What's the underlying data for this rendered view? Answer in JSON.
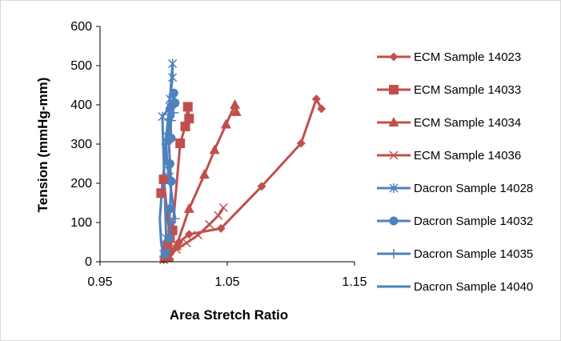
{
  "chart_data": {
    "type": "scatter",
    "title": "",
    "xlabel": "Area Stretch Ratio",
    "ylabel": "Tension (mmHg-mm)",
    "xlim": [
      0.95,
      1.15
    ],
    "ylim": [
      0,
      600
    ],
    "xticks": [
      "0.95",
      "1.05",
      "1.15"
    ],
    "xtick_values": [
      0.95,
      1.05,
      1.15
    ],
    "yticks": [
      "0",
      "100",
      "200",
      "300",
      "400",
      "500",
      "600"
    ],
    "ytick_values": [
      0,
      100,
      200,
      300,
      400,
      500,
      600
    ],
    "grid": false,
    "legend_position": "right",
    "series": [
      {
        "name": "ECM Sample 14023",
        "color": "#c0504d",
        "marker": "diamond",
        "points": [
          [
            1.0,
            5
          ],
          [
            1.005,
            20
          ],
          [
            1.012,
            50
          ],
          [
            1.02,
            70
          ],
          [
            1.045,
            85
          ],
          [
            1.077,
            192
          ],
          [
            1.108,
            302
          ],
          [
            1.12,
            415
          ],
          [
            1.124,
            390
          ]
        ]
      },
      {
        "name": "ECM Sample 14033",
        "color": "#c0504d",
        "marker": "square",
        "points": [
          [
            0.998,
            175
          ],
          [
            1.0,
            210
          ],
          [
            1.005,
            60
          ],
          [
            1.003,
            40
          ],
          [
            1.007,
            80
          ],
          [
            1.013,
            302
          ],
          [
            1.017,
            345
          ],
          [
            1.019,
            395
          ],
          [
            1.02,
            365
          ]
        ]
      },
      {
        "name": "ECM Sample 14034",
        "color": "#c0504d",
        "marker": "triangle",
        "points": [
          [
            1.004,
            10
          ],
          [
            1.01,
            40
          ],
          [
            1.02,
            135
          ],
          [
            1.032,
            222
          ],
          [
            1.04,
            285
          ],
          [
            1.049,
            350
          ],
          [
            1.056,
            400
          ],
          [
            1.057,
            382
          ]
        ]
      },
      {
        "name": "ECM Sample 14036",
        "color": "#c0504d",
        "marker": "x",
        "points": [
          [
            1.0,
            5
          ],
          [
            1.005,
            15
          ],
          [
            1.01,
            32
          ],
          [
            1.018,
            48
          ],
          [
            1.027,
            68
          ],
          [
            1.036,
            95
          ],
          [
            1.043,
            118
          ],
          [
            1.047,
            138
          ]
        ]
      },
      {
        "name": "Dacron Sample 14028",
        "color": "#4f81bd",
        "marker": "asterisk",
        "points": [
          [
            1.0,
            20
          ],
          [
            1.002,
            60
          ],
          [
            0.999,
            370
          ],
          [
            1.005,
            395
          ],
          [
            1.005,
            415
          ],
          [
            1.007,
            470
          ],
          [
            1.007,
            505
          ],
          [
            1.004,
            370
          ],
          [
            1.003,
            320
          ]
        ]
      },
      {
        "name": "Dacron Sample 14032",
        "color": "#4f81bd",
        "marker": "circle",
        "points": [
          [
            1.001,
            20
          ],
          [
            1.004,
            60
          ],
          [
            1.005,
            135
          ],
          [
            1.006,
            205
          ],
          [
            1.005,
            250
          ],
          [
            1.004,
            310
          ],
          [
            1.006,
            315
          ],
          [
            1.005,
            390
          ],
          [
            1.007,
            400
          ],
          [
            1.008,
            430
          ],
          [
            1.009,
            405
          ]
        ]
      },
      {
        "name": "Dacron Sample 14035",
        "color": "#4f81bd",
        "marker": "plus",
        "points": [
          [
            1.002,
            30
          ],
          [
            1.005,
            80
          ],
          [
            1.006,
            100
          ],
          [
            1.009,
            110
          ],
          [
            1.004,
            225
          ],
          [
            1.003,
            240
          ],
          [
            1.002,
            300
          ],
          [
            1.006,
            360
          ],
          [
            1.008,
            380
          ]
        ]
      },
      {
        "name": "Dacron Sample 14040",
        "color": "#4f81bd",
        "marker": "none",
        "points": [
          [
            1.0,
            10
          ],
          [
            0.998,
            50
          ],
          [
            0.997,
            110
          ],
          [
            0.999,
            200
          ],
          [
            1.001,
            260
          ],
          [
            1.002,
            320
          ],
          [
            1.004,
            380
          ],
          [
            1.005,
            430
          ]
        ]
      }
    ]
  }
}
